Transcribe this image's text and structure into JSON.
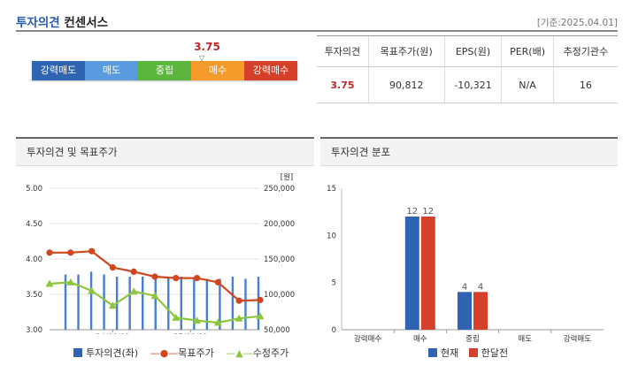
{
  "header": {
    "title_highlight": "투자의견",
    "title_rest": "컨센서스",
    "date": "[기준:2025.04.01]"
  },
  "scale": {
    "current_value": "3.75",
    "marker": "▽",
    "segments": [
      {
        "label": "강력매도",
        "color": "#2f64b3"
      },
      {
        "label": "매도",
        "color": "#5a9be0"
      },
      {
        "label": "중립",
        "color": "#5cb63d"
      },
      {
        "label": "매수",
        "color": "#f59b2c"
      },
      {
        "label": "강력매수",
        "color": "#d6402b"
      }
    ]
  },
  "summary_table": {
    "headers": [
      "투자의견",
      "목표주가(원)",
      "EPS(원)",
      "PER(배)",
      "추정기관수"
    ],
    "values": [
      "3.75",
      "90,812",
      "-10,321",
      "N/A",
      "16"
    ]
  },
  "left_panel": {
    "title": "투자의견 및 목표주가",
    "unit": "[원]",
    "legend": [
      "투자의견(좌)",
      "목표주가",
      "수정주가"
    ]
  },
  "right_panel": {
    "title": "투자의견 분포",
    "legend": [
      "현재",
      "한달전"
    ]
  },
  "chart_data": [
    {
      "type": "line",
      "title": "투자의견 및 목표주가",
      "left_axis": {
        "ticks": [
          "5.00",
          "4.50",
          "4.00",
          "3.50",
          "3.00"
        ],
        "range": [
          3.0,
          5.0
        ]
      },
      "right_axis": {
        "label": "[원]",
        "ticks": [
          "250,000",
          "200,000",
          "150,000",
          "100,000",
          "50,000"
        ],
        "range": [
          50000,
          250000
        ]
      },
      "x_tick_labels": [
        "24/09/01",
        "25/01/01"
      ],
      "series": [
        {
          "name": "투자의견(좌)",
          "kind": "bar",
          "color": "#4a7fd0",
          "values": [
            3.78,
            3.78,
            3.82,
            3.78,
            3.75,
            3.75,
            3.75,
            3.75,
            3.75,
            3.75,
            3.72,
            3.72,
            3.72,
            3.75,
            3.72,
            3.75
          ]
        },
        {
          "name": "목표주가",
          "kind": "line",
          "color": "#d0461e",
          "values": [
            159000,
            159000,
            161000,
            138000,
            132000,
            125000,
            123000,
            123000,
            117000,
            91000,
            92000
          ]
        },
        {
          "name": "수정주가",
          "kind": "line",
          "color": "#8cc63f",
          "values": [
            115000,
            117000,
            105000,
            84000,
            104000,
            98000,
            67000,
            63000,
            60000,
            66000,
            69000
          ]
        }
      ]
    },
    {
      "type": "bar",
      "title": "투자의견 분포",
      "categories": [
        "강력매수",
        "매수",
        "중립",
        "매도",
        "강력매도"
      ],
      "ylim": [
        0,
        15
      ],
      "yticks": [
        "15",
        "10",
        "5",
        "0"
      ],
      "series": [
        {
          "name": "현재",
          "color": "#2f64b3",
          "values": [
            0,
            12,
            4,
            0,
            0
          ]
        },
        {
          "name": "한달전",
          "color": "#d6402b",
          "values": [
            0,
            12,
            4,
            0,
            0
          ]
        }
      ]
    }
  ]
}
